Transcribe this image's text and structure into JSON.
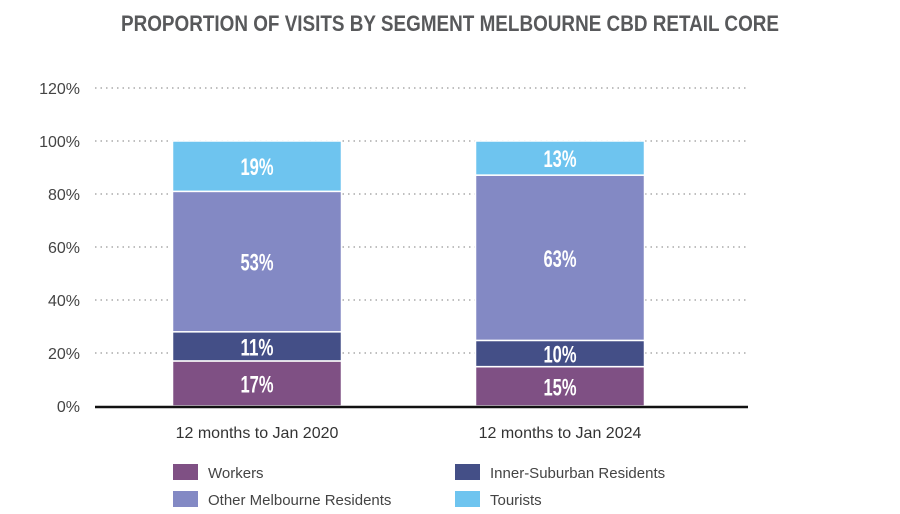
{
  "chart_data": {
    "type": "bar",
    "stacked": true,
    "title": "PROPORTION OF VISITS BY SEGMENT MELBOURNE CBD RETAIL CORE",
    "xlabel": "",
    "ylabel": "",
    "ylim": [
      0,
      120
    ],
    "yticks": [
      "0%",
      "20%",
      "40%",
      "60%",
      "80%",
      "100%",
      "120%"
    ],
    "ytick_values": [
      0,
      20,
      40,
      60,
      80,
      100,
      120
    ],
    "grid": true,
    "legend_position": "bottom",
    "categories": [
      "12 months to Jan 2020",
      "12 months to Jan 2024"
    ],
    "series": [
      {
        "name": "Workers",
        "color": "#7f5084",
        "values": [
          17,
          15
        ],
        "labels": [
          "17%",
          "15%"
        ]
      },
      {
        "name": "Inner-Suburban Residents",
        "color": "#444f87",
        "values": [
          11,
          10
        ],
        "labels": [
          "11%",
          "10%"
        ]
      },
      {
        "name": "Other Melbourne Residents",
        "color": "#8389c4",
        "values": [
          53,
          63
        ],
        "labels": [
          "53%",
          "63%"
        ]
      },
      {
        "name": "Tourists",
        "color": "#6ec4ef",
        "values": [
          19,
          13
        ],
        "labels": [
          "19%",
          "13%"
        ]
      }
    ],
    "legend_order": [
      0,
      1,
      2,
      3
    ]
  }
}
